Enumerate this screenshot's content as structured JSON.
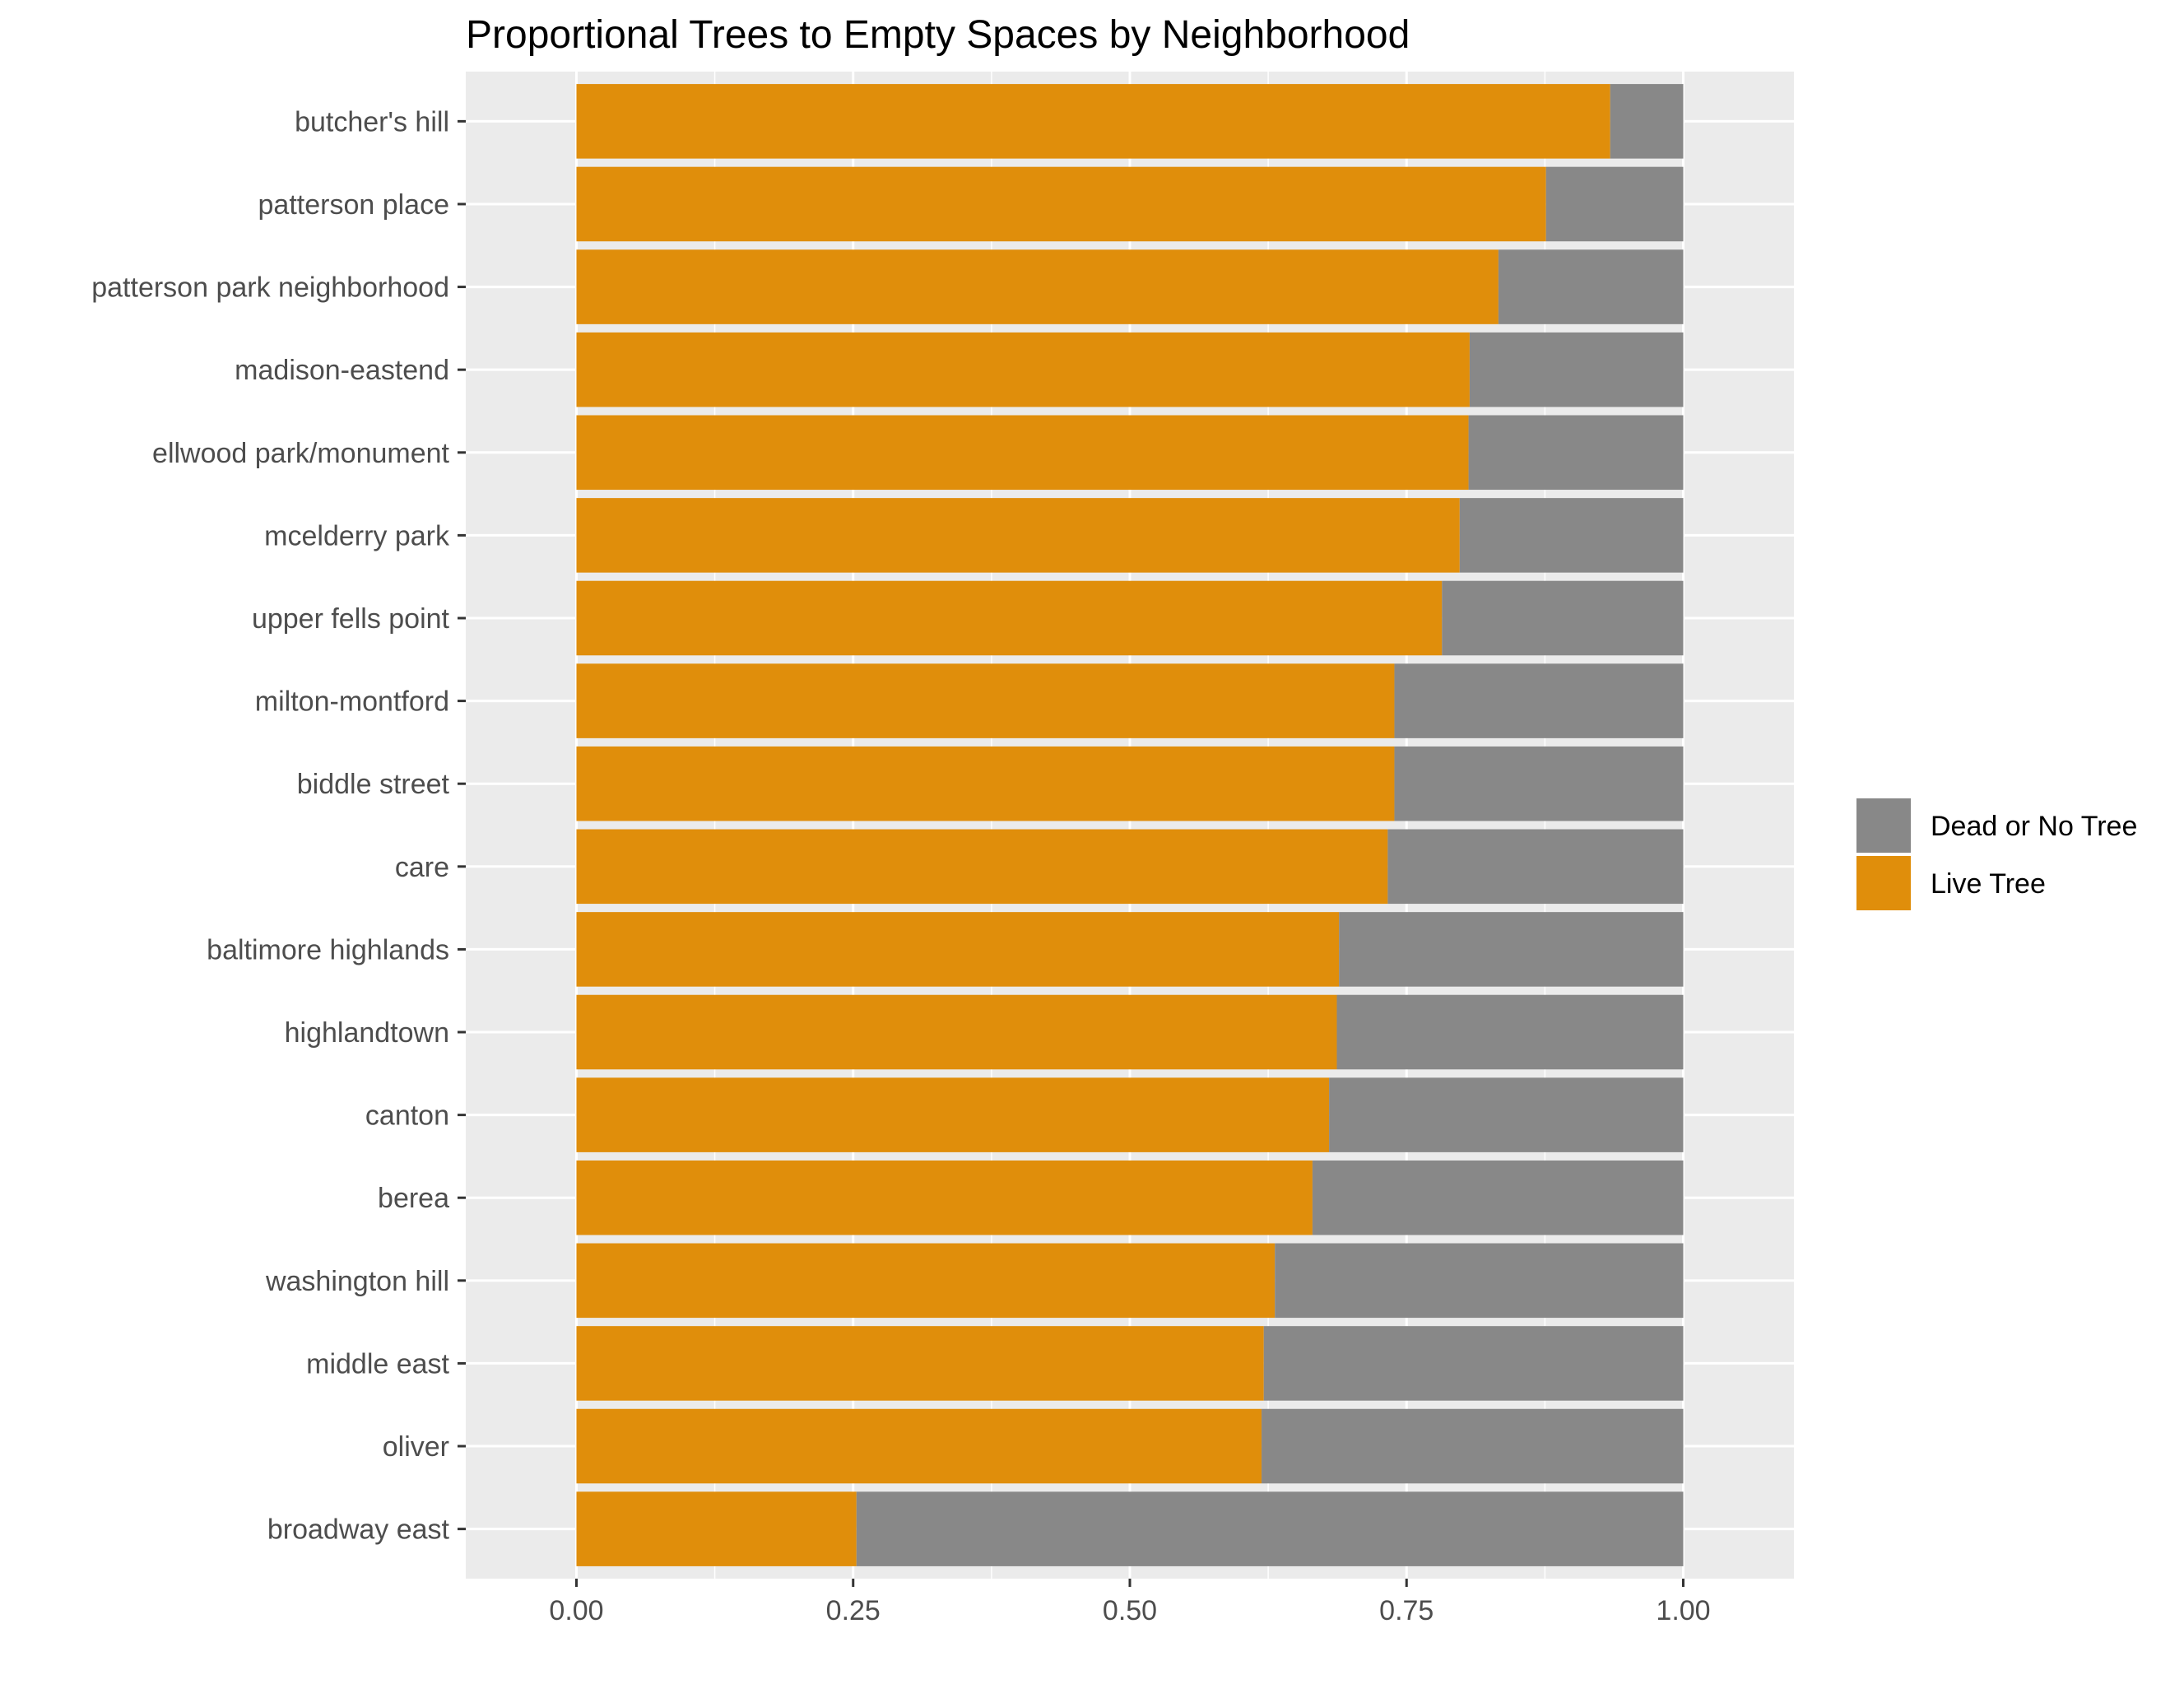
{
  "chart_data": {
    "type": "bar",
    "orientation": "horizontal",
    "stacked": "proportional",
    "title": "Proportional Trees to Empty Spaces by Neighborhood",
    "xlabel": "",
    "ylabel": "",
    "xlim": [
      -0.1,
      1.1
    ],
    "x_ticks": [
      0,
      0.25,
      0.5,
      0.75,
      1
    ],
    "x_tick_labels": [
      "0.00",
      "0.25",
      "0.50",
      "0.75",
      "1.00"
    ],
    "grid": true,
    "legend_position": "right",
    "categories": [
      "butcher's hill",
      "patterson place",
      "patterson park neighborhood",
      "madison-eastend",
      "ellwood park/monument",
      "mcelderry park",
      "upper fells point",
      "milton-montford",
      "biddle street",
      "care",
      "baltimore highlands",
      "highlandtown",
      "canton",
      "berea",
      "washington hill",
      "middle east",
      "oliver",
      "broadway east"
    ],
    "series": [
      {
        "name": "Live Tree",
        "color": "#E08E0B",
        "values": [
          0.934,
          0.876,
          0.833,
          0.807,
          0.806,
          0.798,
          0.782,
          0.739,
          0.739,
          0.733,
          0.689,
          0.687,
          0.68,
          0.665,
          0.631,
          0.621,
          0.619,
          0.253
        ]
      },
      {
        "name": "Dead or No Tree",
        "color": "#888888",
        "values": [
          0.066,
          0.124,
          0.167,
          0.193,
          0.194,
          0.202,
          0.218,
          0.261,
          0.261,
          0.267,
          0.311,
          0.313,
          0.32,
          0.335,
          0.369,
          0.379,
          0.381,
          0.747
        ]
      }
    ],
    "legend_order": [
      "Dead or No Tree",
      "Live Tree"
    ]
  }
}
